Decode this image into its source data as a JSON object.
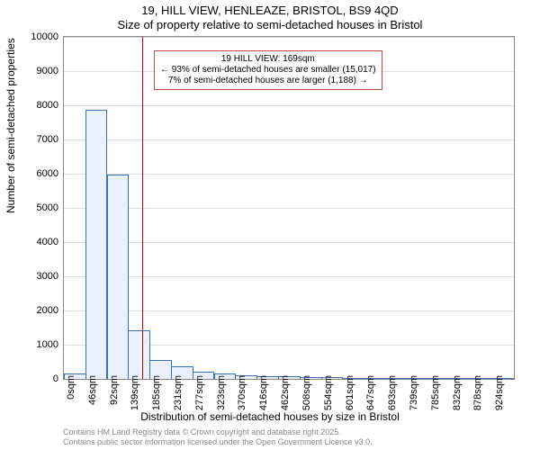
{
  "title": "19, HILL VIEW, HENLEAZE, BRISTOL, BS9 4QD",
  "subtitle": "Size of property relative to semi-detached houses in Bristol",
  "x_axis_label": "Distribution of semi-detached houses by size in Bristol",
  "y_axis_label": "Number of semi-detached properties",
  "chart": {
    "type": "bar",
    "x_categories": [
      "0sqm",
      "46sqm",
      "92sqm",
      "139sqm",
      "185sqm",
      "231sqm",
      "277sqm",
      "323sqm",
      "370sqm",
      "416sqm",
      "462sqm",
      "508sqm",
      "554sqm",
      "601sqm",
      "647sqm",
      "693sqm",
      "739sqm",
      "785sqm",
      "832sqm",
      "878sqm",
      "924sqm"
    ],
    "values": [
      120,
      7850,
      5950,
      1400,
      520,
      330,
      180,
      120,
      90,
      50,
      40,
      30,
      15,
      10,
      10,
      10,
      10,
      10,
      10,
      10,
      10
    ],
    "ylim": [
      0,
      10000
    ],
    "ytick_step": 1000,
    "bar_fill": "#e9f2fc",
    "bar_stroke": "#3b70b8",
    "chart_bg": "#ffffff",
    "grid_color": "#dddddd",
    "border_color": "#888888",
    "marker_color": "#cc0000",
    "marker_category_index": 3.67
  },
  "annotation": {
    "title": "19 HILL VIEW: 169sqm",
    "line1": "← 93% of semi-detached houses are smaller (15,017)",
    "line2": "7% of semi-detached houses are larger (1,188) →",
    "border_color": "#c44444"
  },
  "credits": {
    "line1": "Contains HM Land Registry data © Crown copyright and database right 2025.",
    "line2": "Contains public sector information licensed under the Open Government Licence v3.0."
  }
}
